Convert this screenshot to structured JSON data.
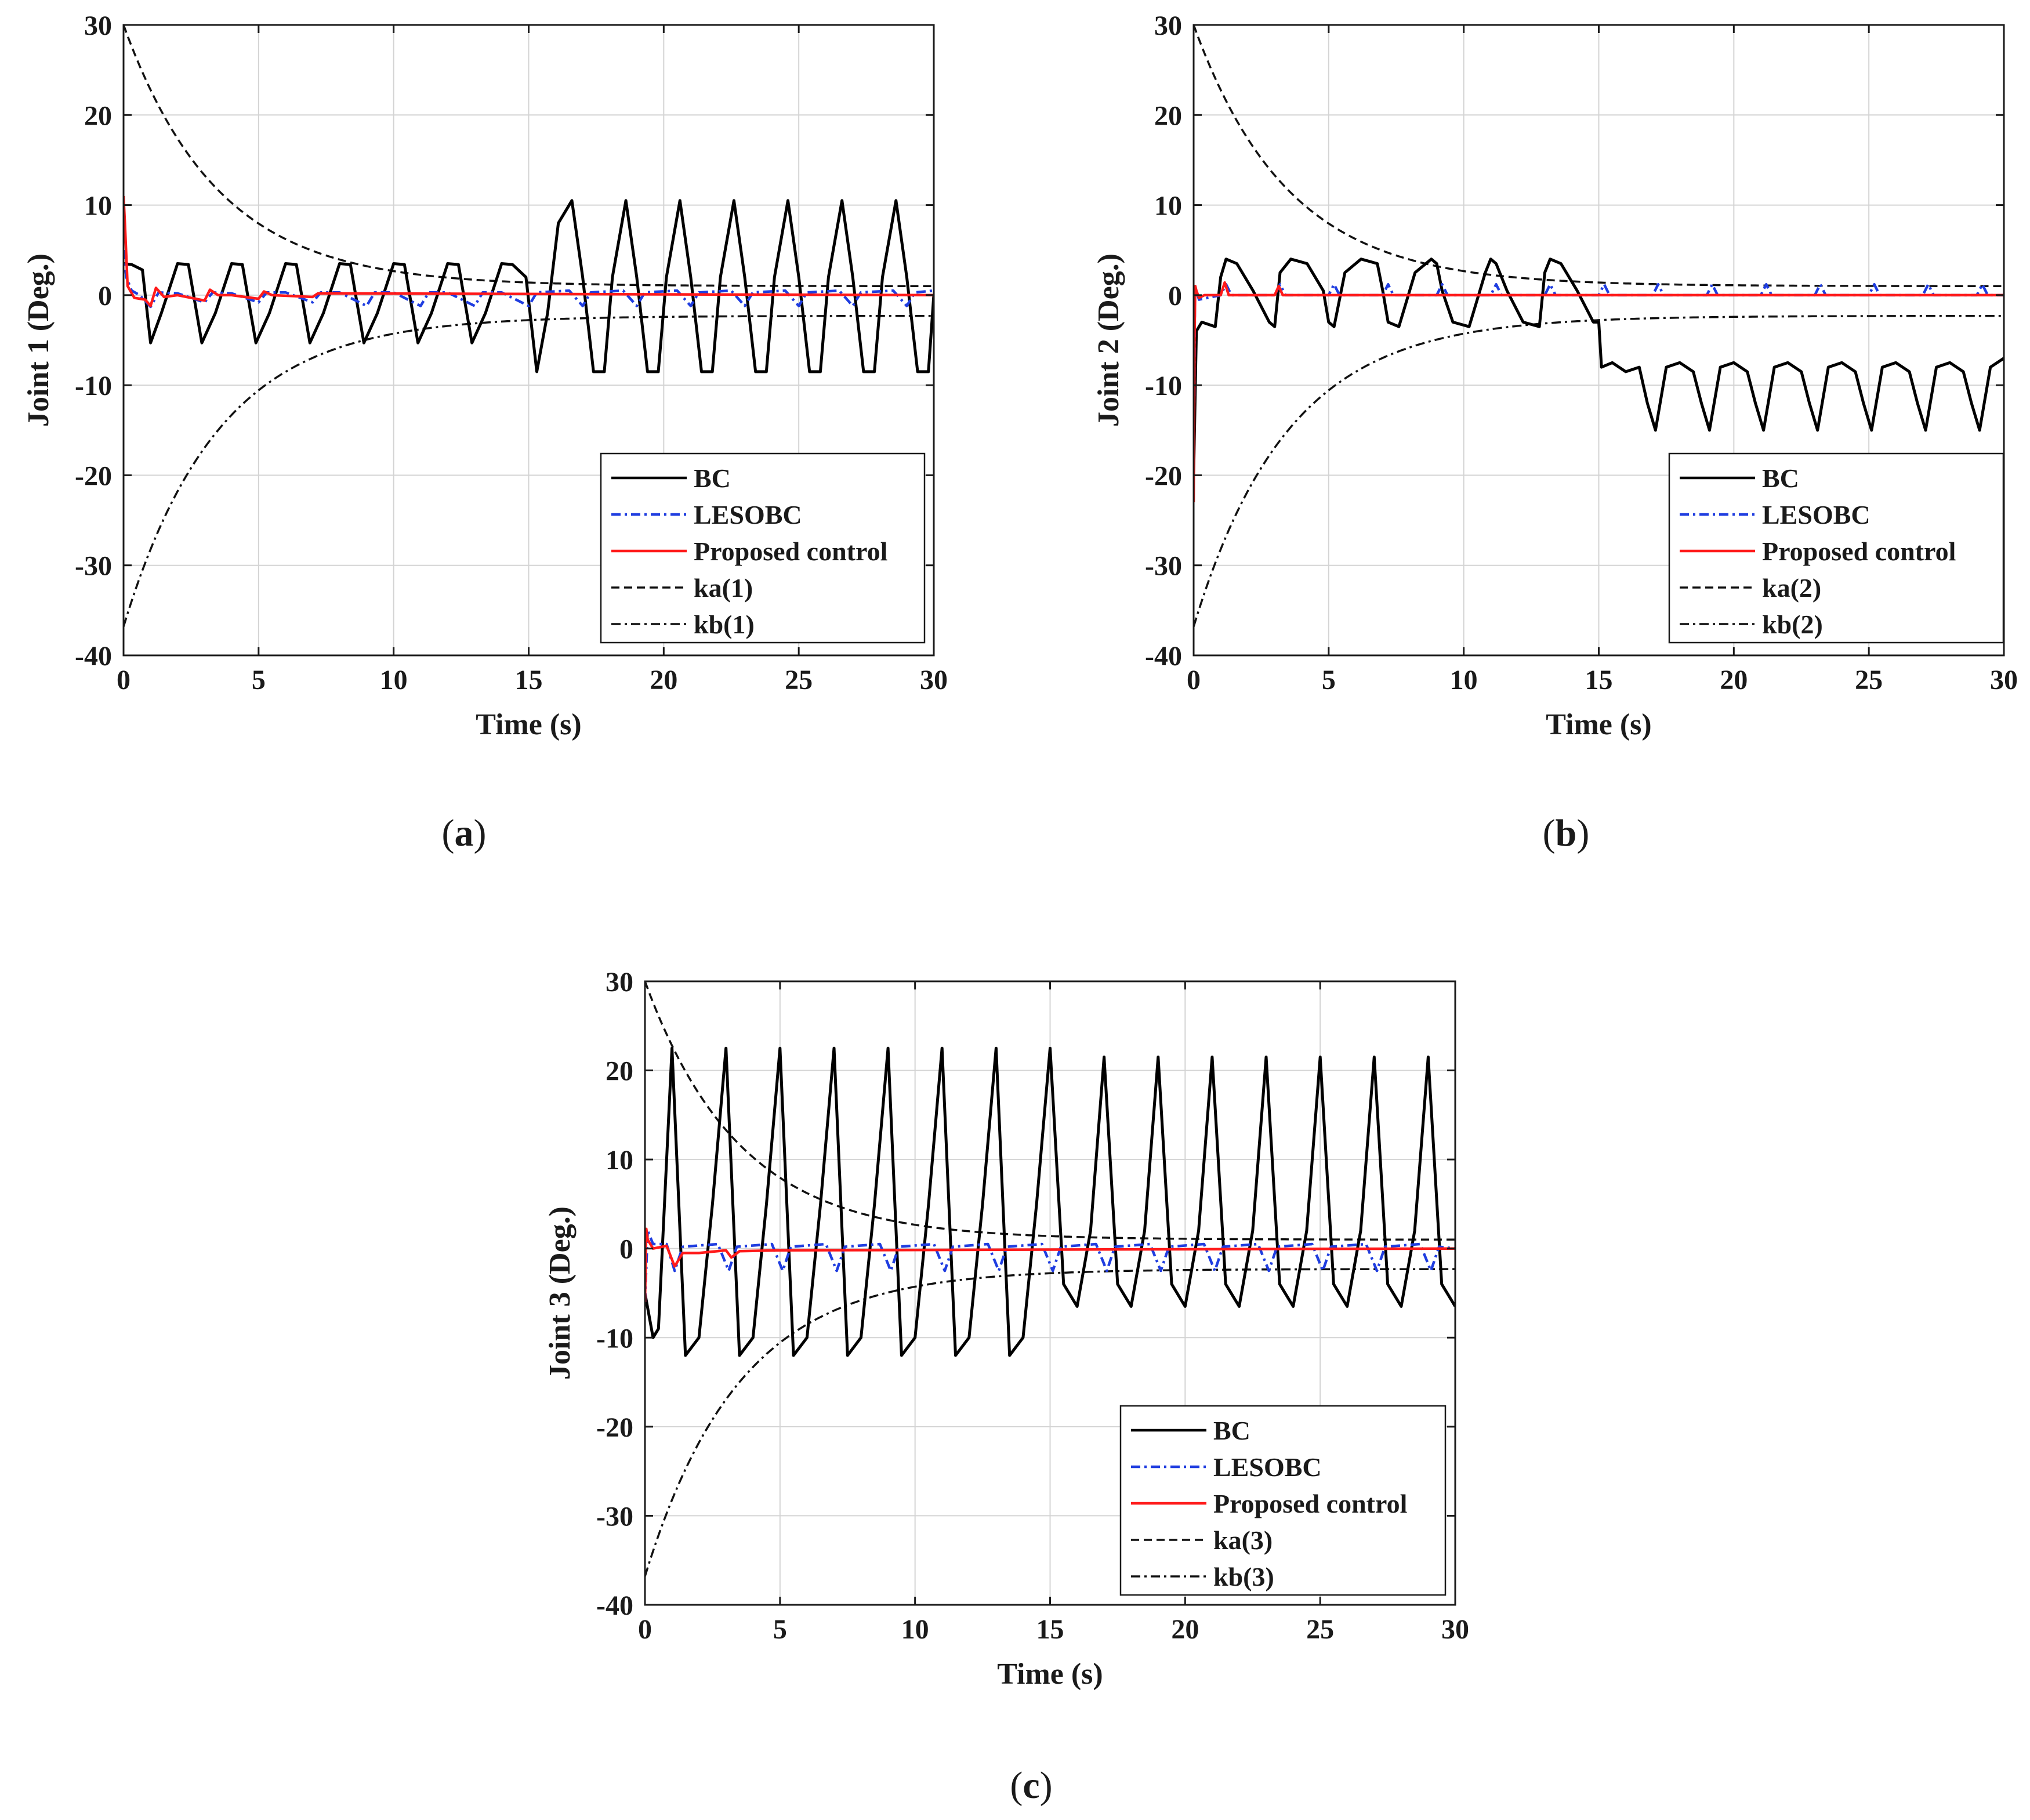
{
  "chart_data": [
    {
      "type": "line",
      "panel": "a",
      "caption": "a",
      "xlabel": "Time (s)",
      "ylabel": "Joint 1 (Deg.)",
      "xlim": [
        0,
        30
      ],
      "ylim": [
        -40,
        30
      ],
      "xticks": [
        0,
        5,
        10,
        15,
        20,
        25,
        30
      ],
      "yticks": [
        -40,
        -30,
        -20,
        -10,
        0,
        10,
        20,
        30
      ],
      "grid": true,
      "legend_position": "bottom-right",
      "legend": [
        "BC",
        "LESOBC",
        "Proposed control",
        "ka(1)",
        "kb(1)"
      ],
      "series": [
        {
          "name": "BC",
          "color": "#000000",
          "style": "solid",
          "x": [
            0,
            0.3,
            0.7,
            1.0,
            1.4,
            2.0,
            2.4,
            2.9,
            3.4,
            4.0,
            4.4,
            4.9,
            5.4,
            6.0,
            6.4,
            6.9,
            7.4,
            8.0,
            8.4,
            8.9,
            9.4,
            10.0,
            10.4,
            10.9,
            11.4,
            12.0,
            12.4,
            12.9,
            13.4,
            14.0,
            14.4,
            14.9,
            15.3,
            15.7,
            16.1,
            16.6,
            17.0,
            17.4,
            17.8,
            18.1,
            18.6,
            19.0,
            19.4,
            19.8,
            20.1,
            20.6,
            21.0,
            21.4,
            21.8,
            22.1,
            22.6,
            23.0,
            23.4,
            23.8,
            24.1,
            24.6,
            25.0,
            25.4,
            25.8,
            26.1,
            26.6,
            27.0,
            27.4,
            27.8,
            28.1,
            28.6,
            29.0,
            29.4,
            29.8,
            30.0
          ],
          "values": [
            3.5,
            3.4,
            2.8,
            -5.3,
            -2.0,
            3.5,
            3.4,
            -5.3,
            -2.0,
            3.5,
            3.4,
            -5.3,
            -2.0,
            3.5,
            3.4,
            -5.3,
            -2.0,
            3.5,
            3.4,
            -5.3,
            -2.0,
            3.5,
            3.4,
            -5.3,
            -2.0,
            3.5,
            3.4,
            -5.3,
            -2.0,
            3.5,
            3.4,
            2.0,
            -8.5,
            -2.0,
            8.0,
            10.5,
            2.0,
            -8.5,
            -8.5,
            2.0,
            10.5,
            2.0,
            -8.5,
            -8.5,
            2.0,
            10.5,
            2.0,
            -8.5,
            -8.5,
            2.0,
            10.5,
            2.0,
            -8.5,
            -8.5,
            2.0,
            10.5,
            2.0,
            -8.5,
            -8.5,
            2.0,
            10.5,
            2.0,
            -8.5,
            -8.5,
            2.0,
            10.5,
            2.0,
            -8.5,
            -8.5,
            0.0
          ]
        },
        {
          "name": "LESOBC",
          "color": "#1f3de0",
          "style": "dashdot",
          "x": [
            0,
            0.1,
            0.3,
            0.6,
            1.0,
            1.3,
            2.0,
            3.0,
            3.3,
            4.0,
            5.0,
            5.3,
            6.0,
            7.0,
            7.3,
            8.0,
            9.0,
            9.3,
            10.0,
            11.0,
            11.3,
            12.0,
            13.0,
            13.3,
            14.0,
            15.0,
            15.3,
            16.5,
            17.0,
            17.3,
            18.5,
            19.0,
            19.3,
            20.5,
            21.0,
            21.3,
            22.5,
            23.0,
            23.3,
            24.5,
            25.0,
            25.3,
            26.5,
            27.0,
            27.3,
            28.5,
            29.0,
            29.3,
            30.0
          ],
          "values": [
            5.0,
            2.0,
            0.5,
            0.0,
            -1.3,
            0.3,
            0.2,
            -0.8,
            0.3,
            0.2,
            -0.8,
            0.3,
            0.3,
            -0.8,
            0.3,
            0.3,
            -1.2,
            0.3,
            0.3,
            -1.2,
            0.3,
            0.3,
            -1.2,
            0.3,
            0.3,
            -1.2,
            0.3,
            0.5,
            -1.2,
            0.3,
            0.5,
            -1.2,
            0.3,
            0.5,
            -1.2,
            0.3,
            0.5,
            -1.2,
            0.3,
            0.5,
            -1.2,
            0.3,
            0.5,
            -1.2,
            0.3,
            0.5,
            -1.2,
            0.3,
            0.5
          ]
        },
        {
          "name": "Proposed control",
          "color": "#ff1a1a",
          "style": "solid",
          "x": [
            0,
            0.05,
            0.15,
            0.4,
            0.8,
            1.0,
            1.2,
            1.5,
            2.0,
            3.0,
            3.2,
            3.5,
            4.0,
            5.0,
            5.2,
            5.5,
            7.0,
            7.2,
            30.0
          ],
          "values": [
            11.0,
            8.0,
            1.0,
            -0.3,
            -0.5,
            -1.2,
            0.8,
            -0.2,
            0.0,
            -0.6,
            0.6,
            0.0,
            0.0,
            -0.4,
            0.4,
            0.0,
            -0.2,
            0.2,
            0.0
          ]
        },
        {
          "name": "ka(1)",
          "color": "#111111",
          "style": "dashed",
          "formula": "1 + 29*exp(-t/3.5)"
        },
        {
          "name": "kb(1)",
          "color": "#111111",
          "style": "dashdot",
          "formula": "-2.3 - 34.5*exp(-t/3.5)"
        }
      ]
    },
    {
      "type": "line",
      "panel": "b",
      "caption": "b",
      "xlabel": "Time (s)",
      "ylabel": "Joint 2 (Deg.)",
      "xlim": [
        0,
        30
      ],
      "ylim": [
        -40,
        30
      ],
      "xticks": [
        0,
        5,
        10,
        15,
        20,
        25,
        30
      ],
      "yticks": [
        -40,
        -30,
        -20,
        -10,
        0,
        10,
        20,
        30
      ],
      "grid": true,
      "legend_position": "bottom-right",
      "legend": [
        "BC",
        "LESOBC",
        "Proposed control",
        "ka(2)",
        "kb(2)"
      ],
      "series": [
        {
          "name": "BC",
          "color": "#000000",
          "style": "solid",
          "x": [
            0,
            0.1,
            0.3,
            0.8,
            1.0,
            1.2,
            1.6,
            2.2,
            2.8,
            3.0,
            3.2,
            3.6,
            4.2,
            4.8,
            5.0,
            5.2,
            5.6,
            6.2,
            6.8,
            7.0,
            7.2,
            7.6,
            8.2,
            8.8,
            9.0,
            9.2,
            9.6,
            10.2,
            10.8,
            11.0,
            11.2,
            11.6,
            12.2,
            12.8,
            13.0,
            13.2,
            13.6,
            14.2,
            14.8,
            15.0,
            15.1,
            15.5,
            16.0,
            16.5,
            16.8,
            17.1,
            17.5,
            18.0,
            18.5,
            18.8,
            19.1,
            19.5,
            20.0,
            20.5,
            20.8,
            21.1,
            21.5,
            22.0,
            22.5,
            22.8,
            23.1,
            23.5,
            24.0,
            24.5,
            24.8,
            25.1,
            25.5,
            26.0,
            26.5,
            26.8,
            27.1,
            27.5,
            28.0,
            28.5,
            28.8,
            29.1,
            29.5,
            30.0
          ],
          "values": [
            -20.0,
            -4.0,
            -3.0,
            -3.5,
            2.0,
            4.0,
            3.5,
            0.5,
            -3.0,
            -3.5,
            2.5,
            4.0,
            3.5,
            0.5,
            -3.0,
            -3.5,
            2.5,
            4.0,
            3.5,
            0.5,
            -3.0,
            -3.5,
            2.5,
            4.0,
            3.5,
            0.5,
            -3.0,
            -3.5,
            2.5,
            4.0,
            3.5,
            0.5,
            -3.0,
            -3.5,
            2.5,
            4.0,
            3.5,
            0.5,
            -3.0,
            -3.0,
            -8.0,
            -7.5,
            -8.5,
            -8.0,
            -12.0,
            -15.0,
            -8.0,
            -7.5,
            -8.5,
            -12.0,
            -15.0,
            -8.0,
            -7.5,
            -8.5,
            -12.0,
            -15.0,
            -8.0,
            -7.5,
            -8.5,
            -12.0,
            -15.0,
            -8.0,
            -7.5,
            -8.5,
            -12.0,
            -15.0,
            -8.0,
            -7.5,
            -8.5,
            -12.0,
            -15.0,
            -8.0,
            -7.5,
            -8.5,
            -12.0,
            -15.0,
            -8.0,
            -7.0
          ]
        },
        {
          "name": "LESOBC",
          "color": "#1f3de0",
          "style": "dashdot",
          "x": [
            0,
            0.05,
            0.2,
            1.0,
            1.2,
            1.4,
            3.0,
            3.2,
            3.4,
            5.0,
            5.2,
            5.4,
            7.0,
            7.2,
            7.4,
            9.0,
            9.2,
            9.4,
            11.0,
            11.2,
            11.4,
            13.0,
            13.2,
            13.4,
            15.0,
            15.2,
            15.4,
            17.0,
            17.2,
            17.4,
            19.0,
            19.2,
            19.4,
            21.0,
            21.2,
            21.4,
            23.0,
            23.2,
            23.4,
            25.0,
            25.2,
            25.4,
            27.0,
            27.2,
            27.4,
            29.0,
            29.2,
            29.4,
            30.0
          ],
          "values": [
            -20.0,
            1.0,
            -0.5,
            0.0,
            1.2,
            0.0,
            0.0,
            1.2,
            0.0,
            0.0,
            1.2,
            0.0,
            0.0,
            1.2,
            0.0,
            0.0,
            1.2,
            0.0,
            0.0,
            1.2,
            0.0,
            0.0,
            1.2,
            0.0,
            0.0,
            1.2,
            0.0,
            0.0,
            1.2,
            0.0,
            0.0,
            1.2,
            0.0,
            0.0,
            1.2,
            0.0,
            0.0,
            1.2,
            0.0,
            0.0,
            1.2,
            0.0,
            0.0,
            1.2,
            0.0,
            0.0,
            1.2,
            0.0,
            0.0
          ]
        },
        {
          "name": "Proposed control",
          "color": "#ff1a1a",
          "style": "solid",
          "x": [
            0,
            0.03,
            0.06,
            0.1,
            0.2,
            0.4,
            1.0,
            1.15,
            1.3,
            3.0,
            3.15,
            3.3,
            5.0,
            30.0
          ],
          "values": [
            -23.0,
            -5.0,
            1.0,
            0.5,
            -0.3,
            0.0,
            0.0,
            1.4,
            0.0,
            0.0,
            1.0,
            0.0,
            0.0,
            0.0
          ]
        },
        {
          "name": "ka(2)",
          "color": "#111111",
          "style": "dashed",
          "formula": "1 + 29*exp(-t/3.5)"
        },
        {
          "name": "kb(2)",
          "color": "#111111",
          "style": "dashdot",
          "formula": "-2.3 - 34.5*exp(-t/3.5)"
        }
      ]
    },
    {
      "type": "line",
      "panel": "c",
      "caption": "c",
      "xlabel": "Time (s)",
      "ylabel": "Joint 3 (Deg.)",
      "xlim": [
        0,
        30
      ],
      "ylim": [
        -40,
        30
      ],
      "xticks": [
        0,
        5,
        10,
        15,
        20,
        25,
        30
      ],
      "yticks": [
        -40,
        -30,
        -20,
        -10,
        0,
        10,
        20,
        30
      ],
      "grid": true,
      "legend_position": "bottom-right",
      "legend": [
        "BC",
        "LESOBC",
        "Proposed control",
        "ka(3)",
        "kb(3)"
      ],
      "series": [
        {
          "name": "BC",
          "color": "#000000",
          "style": "solid",
          "x": [
            0,
            0.3,
            0.5,
            1.0,
            1.5,
            2.0,
            2.5,
            3.0,
            3.5,
            4.0,
            4.5,
            5.0,
            5.5,
            6.0,
            6.5,
            7.0,
            7.5,
            8.0,
            8.5,
            9.0,
            9.5,
            10.0,
            10.5,
            11.0,
            11.5,
            12.0,
            12.5,
            13.0,
            13.5,
            14.0,
            14.5,
            15.0,
            15.5,
            16.0,
            16.5,
            17.0,
            17.5,
            18.0,
            18.5,
            19.0,
            19.5,
            20.0,
            20.5,
            21.0,
            21.5,
            22.0,
            22.5,
            23.0,
            23.5,
            24.0,
            24.5,
            25.0,
            25.5,
            26.0,
            26.5,
            27.0,
            27.5,
            28.0,
            28.5,
            29.0,
            29.5,
            30.0
          ],
          "values": [
            -5.0,
            -10.0,
            -9.0,
            22.5,
            -12.0,
            -10.0,
            5.0,
            22.5,
            -12.0,
            -10.0,
            5.0,
            22.5,
            -12.0,
            -10.0,
            5.0,
            22.5,
            -12.0,
            -10.0,
            5.0,
            22.5,
            -12.0,
            -10.0,
            5.0,
            22.5,
            -12.0,
            -10.0,
            5.0,
            22.5,
            -12.0,
            -10.0,
            5.0,
            22.5,
            -4.0,
            -6.5,
            2.0,
            21.5,
            -4.0,
            -6.5,
            2.0,
            21.5,
            -4.0,
            -6.5,
            2.0,
            21.5,
            -4.0,
            -6.5,
            2.0,
            21.5,
            -4.0,
            -6.5,
            2.0,
            21.5,
            -4.0,
            -6.5,
            2.0,
            21.5,
            -4.0,
            -6.5,
            2.0,
            21.5,
            -4.0,
            -6.5
          ]
        },
        {
          "name": "LESOBC",
          "color": "#1f3de0",
          "style": "dashdot",
          "x": [
            0,
            0.1,
            0.3,
            0.8,
            1.1,
            1.4,
            2.7,
            3.1,
            3.4,
            4.7,
            5.1,
            5.4,
            6.7,
            7.1,
            7.4,
            8.7,
            9.1,
            9.4,
            10.7,
            11.1,
            11.4,
            12.7,
            13.1,
            13.4,
            14.7,
            15.1,
            15.4,
            16.7,
            17.1,
            17.4,
            18.7,
            19.1,
            19.4,
            20.7,
            21.1,
            21.4,
            22.7,
            23.1,
            23.4,
            24.7,
            25.1,
            25.4,
            26.7,
            27.1,
            27.4,
            28.7,
            29.1,
            29.4,
            30.0
          ],
          "values": [
            -6.0,
            2.0,
            0.5,
            0.5,
            -2.5,
            0.2,
            0.5,
            -2.5,
            0.2,
            0.5,
            -2.5,
            0.2,
            0.5,
            -2.5,
            0.2,
            0.5,
            -2.5,
            0.2,
            0.5,
            -2.5,
            0.2,
            0.5,
            -2.5,
            0.2,
            0.5,
            -2.5,
            0.2,
            0.5,
            -2.5,
            0.2,
            0.5,
            -2.5,
            0.2,
            0.5,
            -2.5,
            0.2,
            0.5,
            -2.5,
            0.2,
            0.5,
            -2.5,
            0.2,
            0.5,
            -2.5,
            0.2,
            0.5,
            -2.5,
            0.2,
            0.0
          ]
        },
        {
          "name": "Proposed control",
          "color": "#ff1a1a",
          "style": "solid",
          "x": [
            0,
            0.05,
            0.1,
            0.3,
            0.8,
            1.1,
            1.4,
            2.0,
            3.0,
            3.2,
            3.5,
            5.0,
            30.0
          ],
          "values": [
            -6.0,
            2.2,
            1.0,
            0.0,
            0.3,
            -2.0,
            -0.5,
            -0.5,
            -0.2,
            -1.0,
            -0.3,
            -0.2,
            0.0
          ]
        },
        {
          "name": "ka(3)",
          "color": "#111111",
          "style": "dashed",
          "formula": "1 + 29*exp(-t/3.5)"
        },
        {
          "name": "kb(3)",
          "color": "#111111",
          "style": "dashdot",
          "formula": "-2.3 - 34.5*exp(-t/3.5)"
        }
      ]
    }
  ]
}
